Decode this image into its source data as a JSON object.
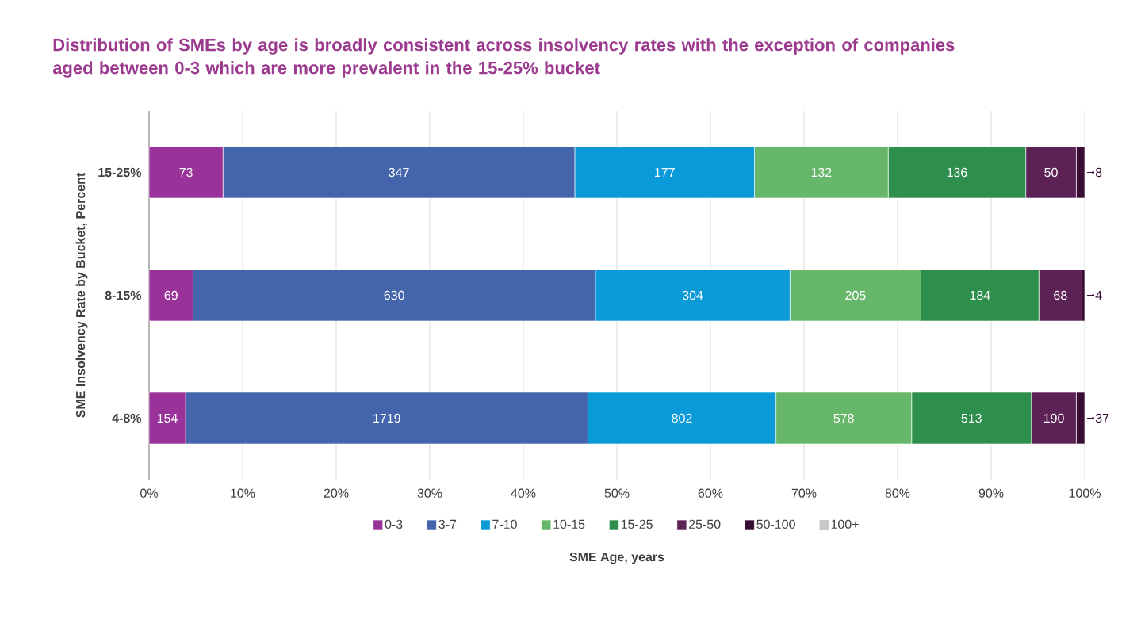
{
  "chart_data": {
    "type": "bar",
    "orientation": "horizontal",
    "stacked": true,
    "title": "Distribution of SMEs by age is broadly consistent across insolvency rates with the exception of companies aged between 0-3 which are more prevalent in the 15-25% bucket",
    "xlabel": "SME Age, years",
    "ylabel": "SME Insolvency Rate by Bucket, Percent",
    "categories": [
      "15-25%",
      "8-15%",
      "4-8%"
    ],
    "xlim": [
      0,
      100
    ],
    "xticks": [
      {
        "value": 0,
        "label": "0%"
      },
      {
        "value": 10,
        "label": "10%"
      },
      {
        "value": 20,
        "label": "20%"
      },
      {
        "value": 30,
        "label": "30%"
      },
      {
        "value": 40,
        "label": "40%"
      },
      {
        "value": 50,
        "label": "50%"
      },
      {
        "value": 60,
        "label": "60%"
      },
      {
        "value": 70,
        "label": "70%"
      },
      {
        "value": 80,
        "label": "80%"
      },
      {
        "value": 90,
        "label": "90%"
      },
      {
        "value": 100,
        "label": "100%"
      }
    ],
    "grid": "x",
    "legend": "bottom",
    "series": [
      {
        "name": "0-3",
        "color": "#993399",
        "values": [
          7.9,
          4.7,
          3.9
        ]
      },
      {
        "name": "3-7",
        "color": "#4464ac",
        "values": [
          37.6,
          43.0,
          43.0
        ]
      },
      {
        "name": "7-10",
        "color": "#0a9ad8",
        "values": [
          19.2,
          20.8,
          20.1
        ]
      },
      {
        "name": "10-15",
        "color": "#66b76a",
        "values": [
          14.3,
          14.0,
          14.5
        ]
      },
      {
        "name": "15-25",
        "color": "#2e8f4c",
        "values": [
          14.7,
          12.6,
          12.8
        ]
      },
      {
        "name": "25-50",
        "color": "#5c2155",
        "values": [
          5.4,
          4.6,
          4.8
        ]
      },
      {
        "name": "50-100",
        "color": "#3a0d35",
        "values": [
          0.9,
          0.3,
          0.9
        ]
      },
      {
        "name": "100+",
        "color": "#c8c8c8",
        "values": [
          null,
          null,
          null
        ]
      }
    ],
    "annotations": [
      "73",
      "347",
      "177",
      "132",
      "136",
      "50",
      "8",
      "69",
      "630",
      "304",
      "205",
      "184",
      "68",
      "4",
      "154",
      "1719",
      "802",
      "578",
      "513",
      "190",
      "37"
    ]
  }
}
